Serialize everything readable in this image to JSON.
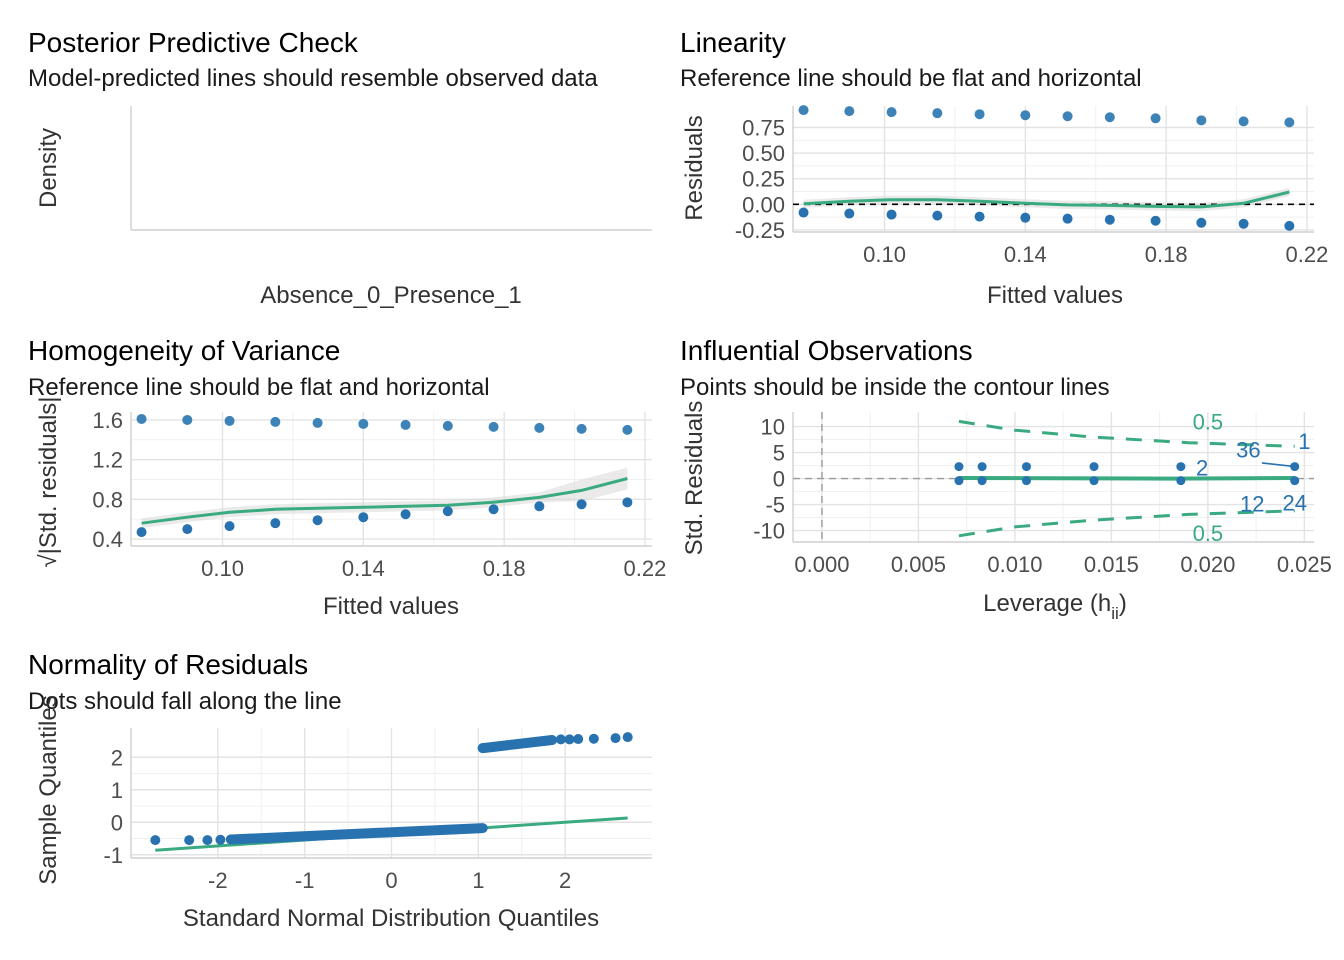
{
  "colors": {
    "points": "#2872b0",
    "points_light": "#3e83b8",
    "line": "#3aaa80",
    "band": "#d9d9d9"
  },
  "chart_data": [
    {
      "id": "ppc",
      "type": "line",
      "title": "Posterior Predictive Check",
      "subtitle": "Model-predicted lines should resemble observed data",
      "xlabel": "Absence_0_Presence_1",
      "ylabel": "Density",
      "series": []
    },
    {
      "id": "linearity",
      "type": "scatter",
      "title": "Linearity",
      "subtitle": "Reference line should be flat and horizontal",
      "xlabel": "Fitted values",
      "ylabel": "Residuals",
      "xlim": [
        0.074,
        0.222
      ],
      "ylim": [
        -0.27,
        0.96
      ],
      "xticks": [
        "0.10",
        "0.14",
        "0.18",
        "0.22"
      ],
      "yticks": [
        "-0.25",
        "0.00",
        "0.25",
        "0.50",
        "0.75"
      ],
      "x": [
        0.077,
        0.09,
        0.102,
        0.115,
        0.127,
        0.14,
        0.152,
        0.164,
        0.177,
        0.19,
        0.202,
        0.215
      ],
      "upper": [
        0.92,
        0.91,
        0.9,
        0.89,
        0.88,
        0.87,
        0.86,
        0.85,
        0.84,
        0.82,
        0.81,
        0.8
      ],
      "lower": [
        -0.08,
        -0.09,
        -0.1,
        -0.11,
        -0.12,
        -0.13,
        -0.14,
        -0.15,
        -0.16,
        -0.18,
        -0.19,
        -0.21
      ],
      "smooth": [
        [
          0.077,
          0.005
        ],
        [
          0.09,
          0.03
        ],
        [
          0.102,
          0.045
        ],
        [
          0.115,
          0.045
        ],
        [
          0.127,
          0.03
        ],
        [
          0.14,
          0.01
        ],
        [
          0.152,
          -0.005
        ],
        [
          0.164,
          -0.01
        ],
        [
          0.177,
          -0.02
        ],
        [
          0.19,
          -0.025
        ],
        [
          0.202,
          0.01
        ],
        [
          0.215,
          0.12
        ]
      ],
      "reference_y": 0
    },
    {
      "id": "homogeneity",
      "type": "scatter",
      "title": "Homogeneity of Variance",
      "subtitle": "Reference line should be flat and horizontal",
      "xlabel": "Fitted values",
      "ylabel": "√|Std. residuals|",
      "xlim": [
        0.074,
        0.222
      ],
      "ylim": [
        0.33,
        1.68
      ],
      "xticks": [
        "0.10",
        "0.14",
        "0.18",
        "0.22"
      ],
      "yticks": [
        "0.4",
        "0.8",
        "1.2",
        "1.6"
      ],
      "x": [
        0.077,
        0.09,
        0.102,
        0.115,
        0.127,
        0.14,
        0.152,
        0.164,
        0.177,
        0.19,
        0.202,
        0.215
      ],
      "upper": [
        1.61,
        1.6,
        1.59,
        1.58,
        1.57,
        1.56,
        1.55,
        1.54,
        1.53,
        1.52,
        1.51,
        1.5
      ],
      "lower": [
        0.47,
        0.5,
        0.53,
        0.56,
        0.59,
        0.62,
        0.65,
        0.68,
        0.7,
        0.73,
        0.75,
        0.77
      ],
      "smooth": [
        [
          0.077,
          0.56
        ],
        [
          0.09,
          0.62
        ],
        [
          0.102,
          0.67
        ],
        [
          0.115,
          0.7
        ],
        [
          0.127,
          0.71
        ],
        [
          0.14,
          0.72
        ],
        [
          0.152,
          0.73
        ],
        [
          0.164,
          0.74
        ],
        [
          0.177,
          0.77
        ],
        [
          0.19,
          0.82
        ],
        [
          0.202,
          0.89
        ],
        [
          0.215,
          1.01
        ]
      ]
    },
    {
      "id": "influential",
      "type": "scatter",
      "title": "Influential Observations",
      "subtitle": "Points should be inside the contour lines",
      "xlabel": "Leverage (h",
      "xlabel_sub": "ii",
      "xlabel_end": ")",
      "ylabel": "Std. Residuals",
      "xlim": [
        -0.0015,
        0.0255
      ],
      "ylim": [
        -12.2,
        12.8
      ],
      "xticks": [
        "0.000",
        "0.005",
        "0.010",
        "0.015",
        "0.020",
        "0.025"
      ],
      "yticks": [
        "-10",
        "-5",
        "0",
        "5",
        "10"
      ],
      "points": [
        [
          0.0071,
          2.3
        ],
        [
          0.0071,
          -0.4
        ],
        [
          0.0083,
          2.3
        ],
        [
          0.0083,
          -0.4
        ],
        [
          0.0106,
          2.3
        ],
        [
          0.0106,
          -0.4
        ],
        [
          0.0141,
          2.3
        ],
        [
          0.0141,
          -0.4
        ],
        [
          0.0186,
          2.3
        ],
        [
          0.0186,
          -0.4
        ],
        [
          0.0245,
          2.3
        ],
        [
          0.0245,
          -0.4
        ]
      ],
      "point_labels": [
        "2",
        "36",
        "1",
        "12",
        "24"
      ],
      "contour_label": "0.5",
      "contour_upper": [
        [
          0.0071,
          11.0
        ],
        [
          0.01,
          9.3
        ],
        [
          0.014,
          8.0
        ],
        [
          0.019,
          6.9
        ],
        [
          0.0245,
          6.2
        ]
      ],
      "contour_lower": [
        [
          0.0071,
          -11.0
        ],
        [
          0.01,
          -9.3
        ],
        [
          0.014,
          -8.0
        ],
        [
          0.019,
          -6.9
        ],
        [
          0.0245,
          -6.2
        ]
      ],
      "smooth": [
        [
          0.0071,
          0.1
        ],
        [
          0.012,
          0.05
        ],
        [
          0.018,
          0.0
        ],
        [
          0.0245,
          0.1
        ]
      ]
    },
    {
      "id": "normality",
      "type": "scatter",
      "title": "Normality of Residuals",
      "subtitle": "Dots should fall along the line",
      "xlabel": "Standard Normal Distribution Quantiles",
      "ylabel": "Sample Quantiles",
      "xlim": [
        -3.0,
        3.0
      ],
      "ylim": [
        -1.1,
        2.9
      ],
      "xticks": [
        "-2",
        "-1",
        "0",
        "1",
        "2"
      ],
      "yticks": [
        "-1",
        "0",
        "1",
        "2"
      ],
      "lower_tail": [
        [
          -2.72,
          -0.55
        ],
        [
          -2.33,
          -0.55
        ],
        [
          -2.12,
          -0.55
        ],
        [
          -1.97,
          -0.54
        ],
        [
          -1.85,
          -0.53
        ]
      ],
      "lower_run": [
        [
          -1.85,
          -0.53
        ],
        [
          1.05,
          -0.18
        ]
      ],
      "upper_run": [
        [
          1.05,
          2.28
        ],
        [
          1.85,
          2.53
        ]
      ],
      "upper_tail": [
        [
          1.05,
          2.28
        ],
        [
          1.95,
          2.55
        ],
        [
          2.05,
          2.55
        ],
        [
          2.15,
          2.56
        ],
        [
          2.33,
          2.57
        ],
        [
          2.58,
          2.59
        ],
        [
          2.72,
          2.62
        ]
      ],
      "qq_line": [
        [
          -2.72,
          -0.86
        ],
        [
          2.72,
          0.13
        ]
      ]
    }
  ]
}
